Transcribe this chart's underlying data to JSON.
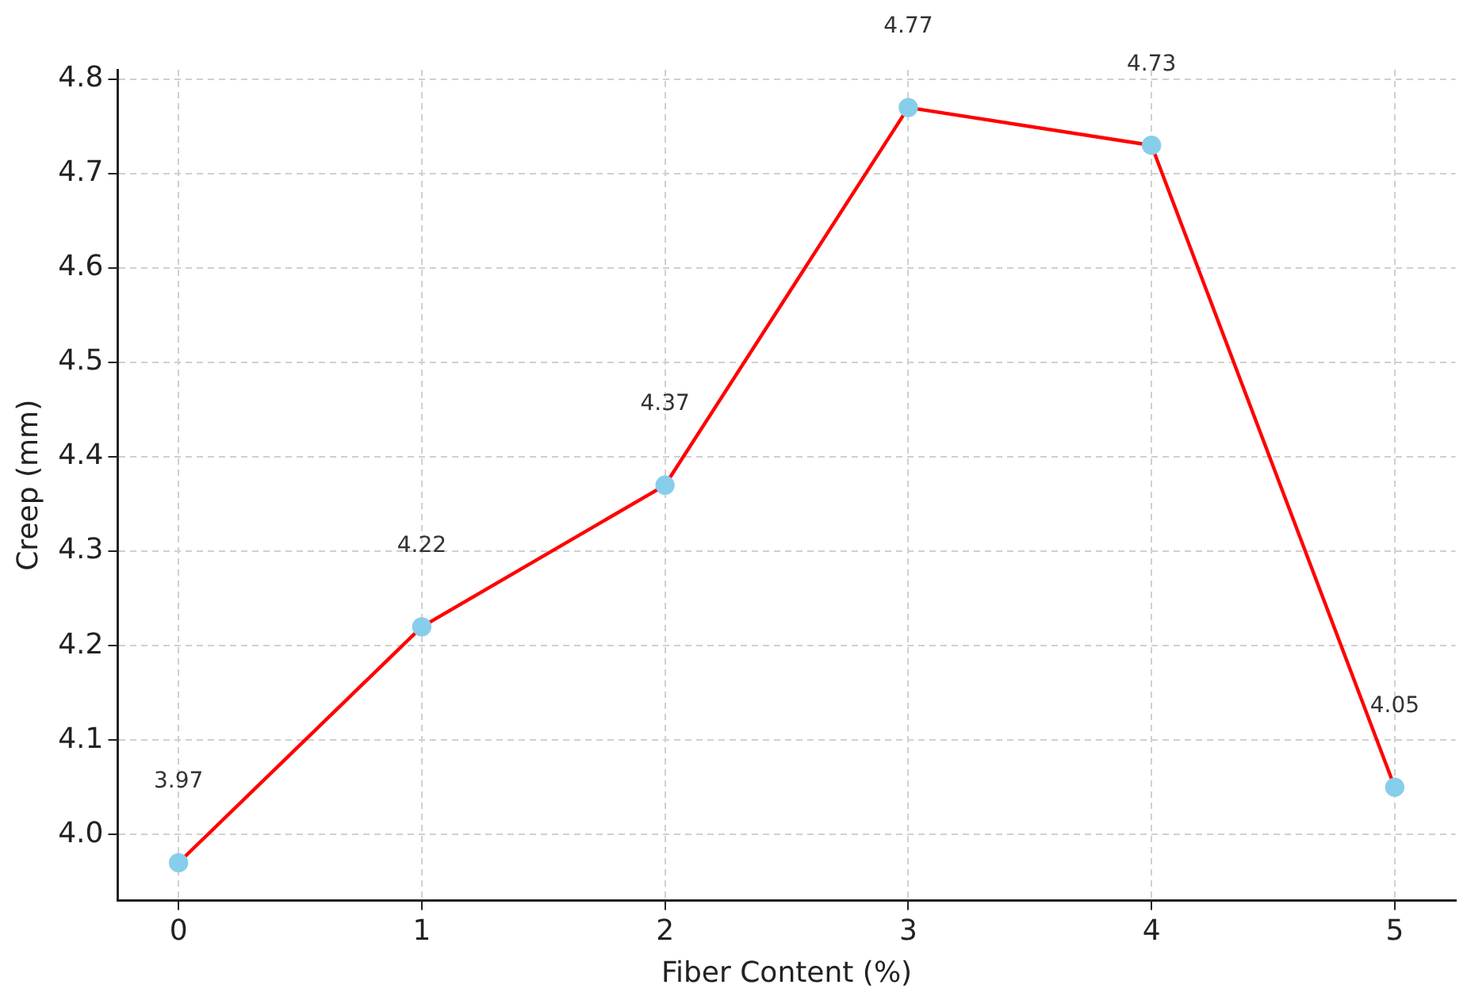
{
  "chart_data": {
    "type": "line",
    "xlabel": "Fiber Content (%)",
    "ylabel": "Creep (mm)",
    "x": [
      0,
      1,
      2,
      3,
      4,
      5
    ],
    "series": [
      {
        "color": "#ff0000",
        "colors": [
          "#87ceeb",
          "#87ceeb",
          "#87ceeb",
          "#87ceeb",
          "#87ceeb",
          "#87ceeb"
        ],
        "values": [
          3.97,
          4.22,
          4.37,
          4.77,
          4.73,
          4.05
        ]
      }
    ],
    "marker": "circle",
    "line_style": "solid",
    "xlim": [
      -0.25,
      5.25
    ],
    "xticks": [
      0,
      1,
      2,
      3,
      4,
      5
    ],
    "ylim": [
      3.93,
      4.81
    ],
    "yticks": [
      {
        "value": 4.0,
        "label": "4.0"
      },
      4.1,
      4.2,
      4.3,
      4.4,
      4.5,
      4.6,
      4.7,
      4.8
    ],
    "grid": true,
    "data_labels": true
  }
}
